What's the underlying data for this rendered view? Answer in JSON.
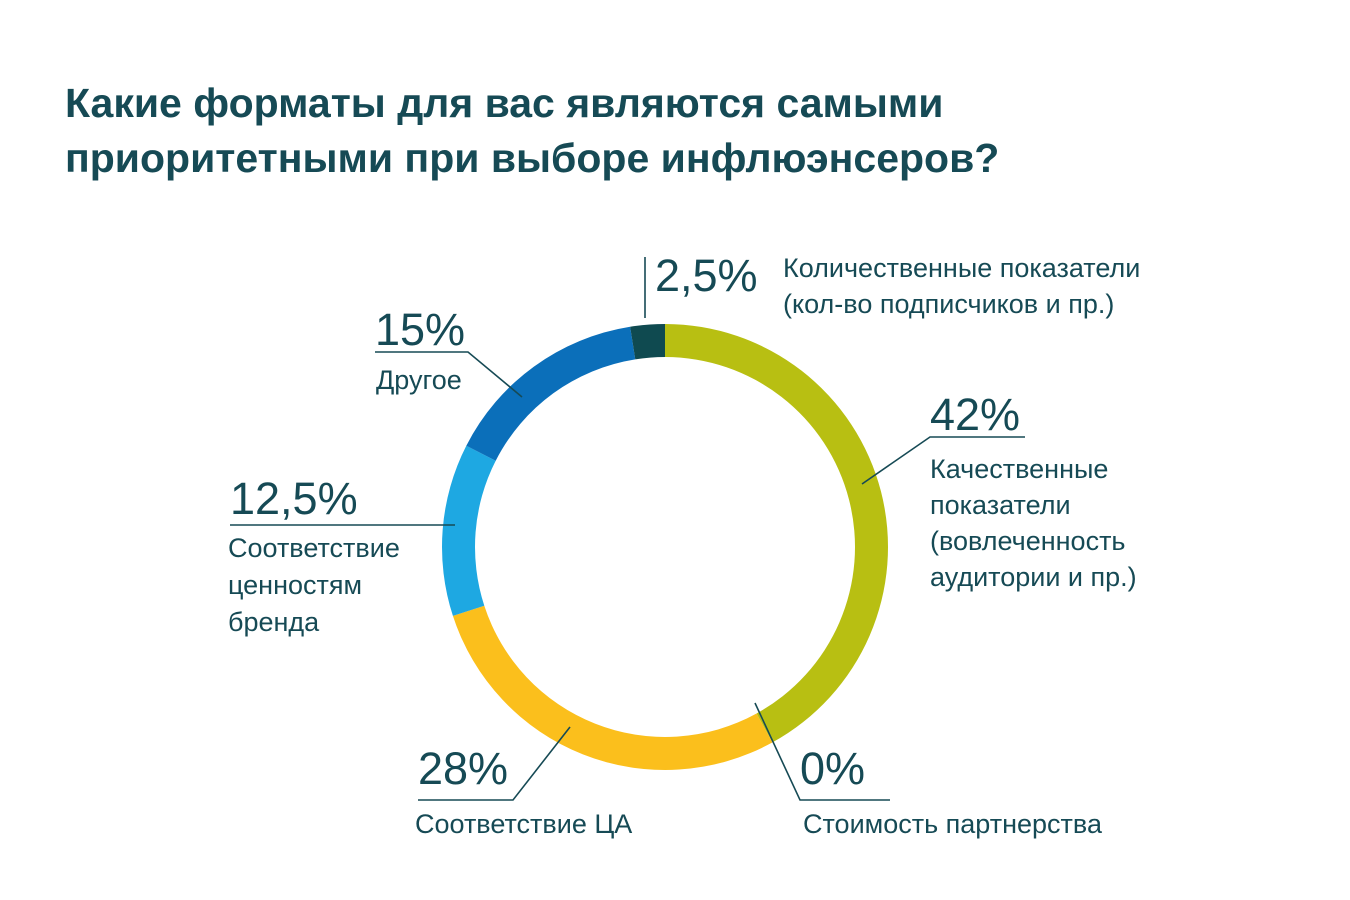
{
  "chart_data": {
    "type": "pie",
    "variant": "donut",
    "title_lines": [
      "Какие форматы для вас являются самыми",
      "приоритетными при выборе инфлюэнсеров?"
    ],
    "slices": [
      {
        "value": 42,
        "value_label": "42%",
        "label_lines": [
          "Качественные",
          "показатели",
          "(вовлеченность",
          "аудитории и пр.)"
        ],
        "color": "#b8bf12"
      },
      {
        "value": 0,
        "value_label": "0%",
        "label_lines": [
          "Стоимость партнерства"
        ],
        "color": "#164a55"
      },
      {
        "value": 28,
        "value_label": "28%",
        "label_lines": [
          "Соответствие ЦА"
        ],
        "color": "#fbbf1c"
      },
      {
        "value": 12.5,
        "value_label": "12,5%",
        "label_lines": [
          "Соответствие",
          "ценностям",
          "бренда"
        ],
        "color": "#1ea8e2"
      },
      {
        "value": 15,
        "value_label": "15%",
        "label_lines": [
          "Другое"
        ],
        "color": "#0b6fba"
      },
      {
        "value": 2.5,
        "value_label": "2,5%",
        "label_lines": [
          "Количественные показатели",
          "(кол-во подписчиков и пр.)"
        ],
        "color": "#0f4a50"
      }
    ]
  }
}
